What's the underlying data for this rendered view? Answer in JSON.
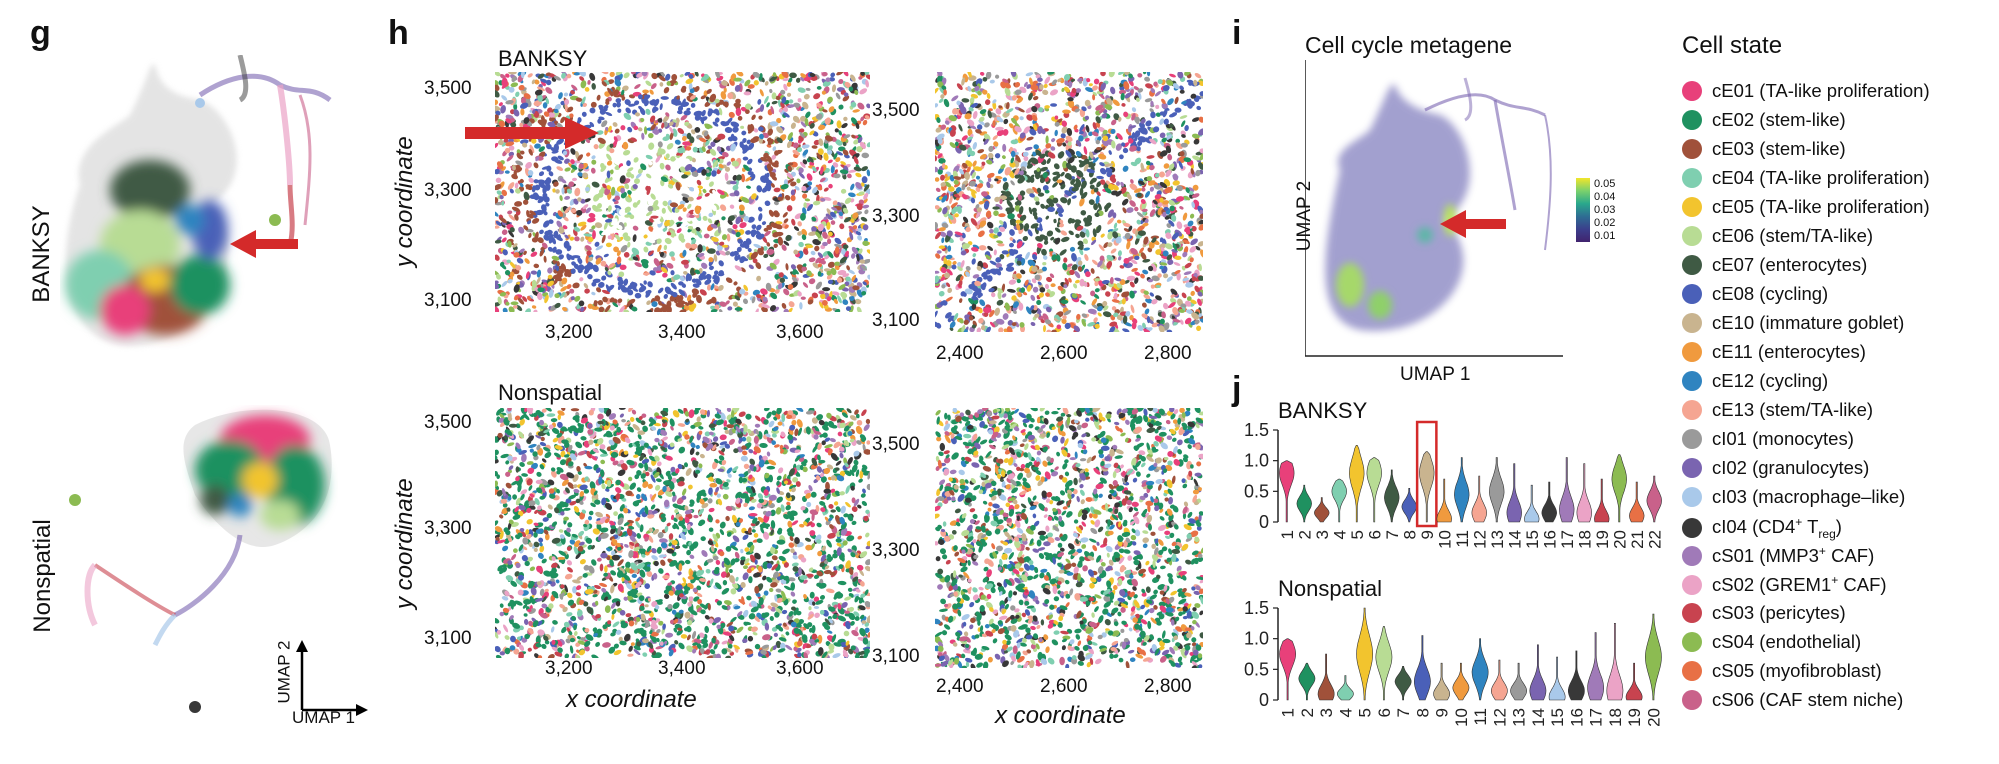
{
  "panels": {
    "g": {
      "letter": "g",
      "banksy_label": "BANKSY",
      "nonspatial_label": "Nonspatial",
      "axis_x": "UMAP 1",
      "axis_y": "UMAP 2"
    },
    "h": {
      "letter": "h",
      "banksy_label": "BANKSY",
      "nonspatial_label": "Nonspatial",
      "x_title": "x coordinate",
      "y_title": "y coordinate",
      "left_x_ticks": [
        "3,200",
        "3,400",
        "3,600"
      ],
      "left_y_ticks": [
        "3,500",
        "3,300",
        "3,100"
      ],
      "right_x_ticks": [
        "2,400",
        "2,600",
        "2,800"
      ],
      "right_y_ticks": [
        "3,500",
        "3,300",
        "3,100"
      ]
    },
    "i": {
      "letter": "i",
      "title": "Cell cycle metagene",
      "axis_x": "UMAP 1",
      "axis_y": "UMAP 2",
      "colorbar_ticks": [
        "0.05",
        "0.04",
        "0.03",
        "0.02",
        "0.01"
      ]
    },
    "j": {
      "letter": "j",
      "banksy_label": "BANKSY",
      "nonspatial_label": "Nonspatial"
    }
  },
  "legend": {
    "title": "Cell state",
    "items": [
      {
        "label": "cE01 (TA-like proliferation)",
        "color": "#e8407a"
      },
      {
        "label": "cE02 (stem-like)",
        "color": "#1f9160"
      },
      {
        "label": "cE03 (stem-like)",
        "color": "#a0513a"
      },
      {
        "label": "cE04 (TA-like proliferation)",
        "color": "#7fcfb0"
      },
      {
        "label": "cE05 (TA-like proliferation)",
        "color": "#f2c42e"
      },
      {
        "label": "cE06 (stem/TA-like)",
        "color": "#b8dc94"
      },
      {
        "label": "cE07 (enterocytes)",
        "color": "#3f5a44"
      },
      {
        "label": "cE08 (cycling)",
        "color": "#4a60b8"
      },
      {
        "label": "cE10 (immature goblet)",
        "color": "#c9b48f"
      },
      {
        "label": "cE11 (enterocytes)",
        "color": "#f09a3e"
      },
      {
        "label": "cE12 (cycling)",
        "color": "#2f84c0"
      },
      {
        "label": "cE13 (stem/TA-like)",
        "color": "#f5a592"
      },
      {
        "label": "cI01 (monocytes)",
        "color": "#9a9a9a"
      },
      {
        "label": "cI02 (granulocytes)",
        "color": "#7a64b0"
      },
      {
        "label": "cI03 (macrophage–like)",
        "color": "#a9c9ea"
      },
      {
        "label": "cI04 (CD4",
        "sup": "+",
        "mid": " T",
        "sub": "reg",
        "end": ")",
        "color": "#383838"
      },
      {
        "label": "cS01 (MMP3",
        "sup": "+",
        "end": " CAF)",
        "color": "#a07ab8"
      },
      {
        "label": "cS02 (GREM1",
        "sup": "+",
        "end": " CAF)",
        "color": "#eba3c6"
      },
      {
        "label": "cS03 (pericytes)",
        "color": "#c8434f"
      },
      {
        "label": "cS04 (endothelial)",
        "color": "#8cbb52"
      },
      {
        "label": "cS05 (myofibroblast)",
        "color": "#e87045"
      },
      {
        "label": "cS06 (CAF stem niche)",
        "color": "#c9618a"
      }
    ]
  },
  "chart_data": [
    {
      "type": "violin",
      "title": "BANKSY",
      "categories": [
        "1",
        "2",
        "3",
        "4",
        "5",
        "6",
        "7",
        "8",
        "9",
        "10",
        "11",
        "12",
        "13",
        "14",
        "15",
        "16",
        "17",
        "18",
        "19",
        "20",
        "21",
        "22"
      ],
      "ylim": [
        0,
        1.5
      ],
      "y_ticks": [
        "0",
        "0.5",
        "1.0",
        "1.5"
      ],
      "highlight_category": "9",
      "colors": [
        "#e8407a",
        "#1f9160",
        "#a0513a",
        "#7fcfb0",
        "#f2c42e",
        "#b8dc94",
        "#3f5a44",
        "#4a60b8",
        "#c9b48f",
        "#f09a3e",
        "#2f84c0",
        "#f5a592",
        "#9a9a9a",
        "#7a64b0",
        "#a9c9ea",
        "#383838",
        "#a07ab8",
        "#eba3c6",
        "#c8434f",
        "#8cbb52",
        "#e87045",
        "#c9618a"
      ],
      "peaks": [
        0.8,
        0.3,
        0.15,
        0.5,
        0.8,
        0.8,
        0.4,
        0.25,
        0.8,
        0.05,
        0.45,
        0.15,
        0.5,
        0.15,
        0.05,
        0.15,
        0.2,
        0.15,
        0.05,
        0.7,
        0.1,
        0.35
      ],
      "max": [
        1.0,
        0.6,
        0.4,
        0.7,
        1.25,
        1.05,
        0.85,
        0.55,
        1.15,
        0.7,
        1.05,
        0.75,
        1.05,
        0.95,
        0.6,
        0.65,
        1.05,
        0.95,
        0.7,
        1.1,
        0.65,
        0.75
      ]
    },
    {
      "type": "violin",
      "title": "Nonspatial",
      "categories": [
        "1",
        "2",
        "3",
        "4",
        "5",
        "6",
        "7",
        "8",
        "9",
        "10",
        "11",
        "12",
        "13",
        "14",
        "15",
        "16",
        "17",
        "18",
        "19",
        "20"
      ],
      "ylim": [
        0,
        1.5
      ],
      "y_ticks": [
        "0",
        "0.5",
        "1.0",
        "1.5"
      ],
      "colors": [
        "#e8407a",
        "#1f9160",
        "#a0513a",
        "#7fcfb0",
        "#f2c42e",
        "#b8dc94",
        "#3f5a44",
        "#4a60b8",
        "#c9b48f",
        "#f09a3e",
        "#2f84c0",
        "#f5a592",
        "#9a9a9a",
        "#7a64b0",
        "#a9c9ea",
        "#383838",
        "#a07ab8",
        "#eba3c6",
        "#c8434f",
        "#8cbb52"
      ],
      "peaks": [
        0.75,
        0.35,
        0.1,
        0.1,
        0.75,
        0.7,
        0.3,
        0.3,
        0.1,
        0.2,
        0.45,
        0.15,
        0.15,
        0.15,
        0.05,
        0.15,
        0.2,
        0.15,
        0.05,
        0.7
      ],
      "max": [
        1.0,
        0.6,
        0.75,
        0.4,
        1.5,
        1.2,
        0.55,
        1.05,
        0.6,
        0.6,
        1.0,
        0.65,
        0.6,
        0.9,
        0.7,
        0.8,
        1.1,
        1.25,
        0.6,
        1.4
      ]
    }
  ]
}
